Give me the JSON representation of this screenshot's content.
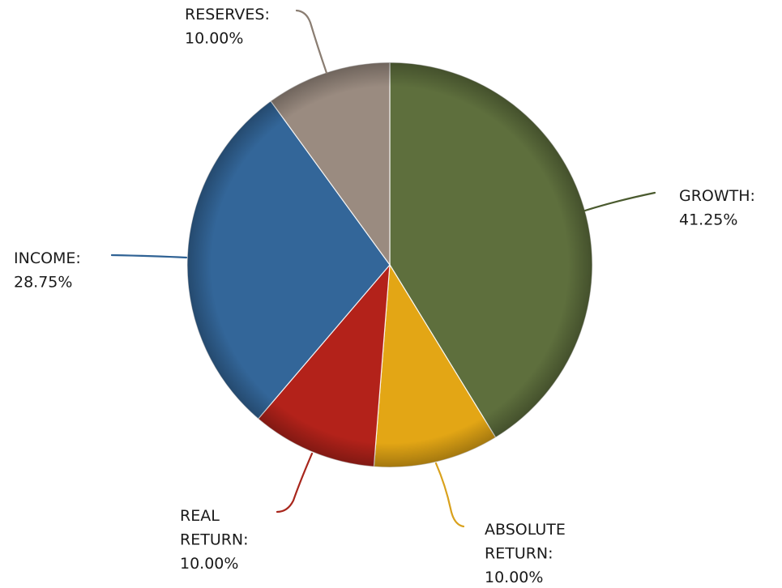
{
  "chart_data": {
    "type": "pie",
    "title": "",
    "start_angle_deg": 0,
    "direction": "clockwise",
    "slices": [
      {
        "label": "GROWTH:",
        "value": 41.25,
        "value_label": "41.25%",
        "color": "#5e6f3d",
        "leader_color": "#4a5a2e"
      },
      {
        "label": "ABSOLUTE RETURN:",
        "value": 10.0,
        "value_label": "10.00%",
        "color": "#e3a615",
        "leader_color": "#d9a11c"
      },
      {
        "label": "REAL RETURN:",
        "value": 10.0,
        "value_label": "10.00%",
        "color": "#b3221a",
        "leader_color": "#a8261c"
      },
      {
        "label": "INCOME:",
        "value": 28.75,
        "value_label": "28.75%",
        "color": "#336699",
        "leader_color": "#2f6294"
      },
      {
        "label": "RESERVES:",
        "value": 10.0,
        "value_label": "10.00%",
        "color": "#9a8b80",
        "leader_color": "#8a7d72"
      }
    ]
  }
}
